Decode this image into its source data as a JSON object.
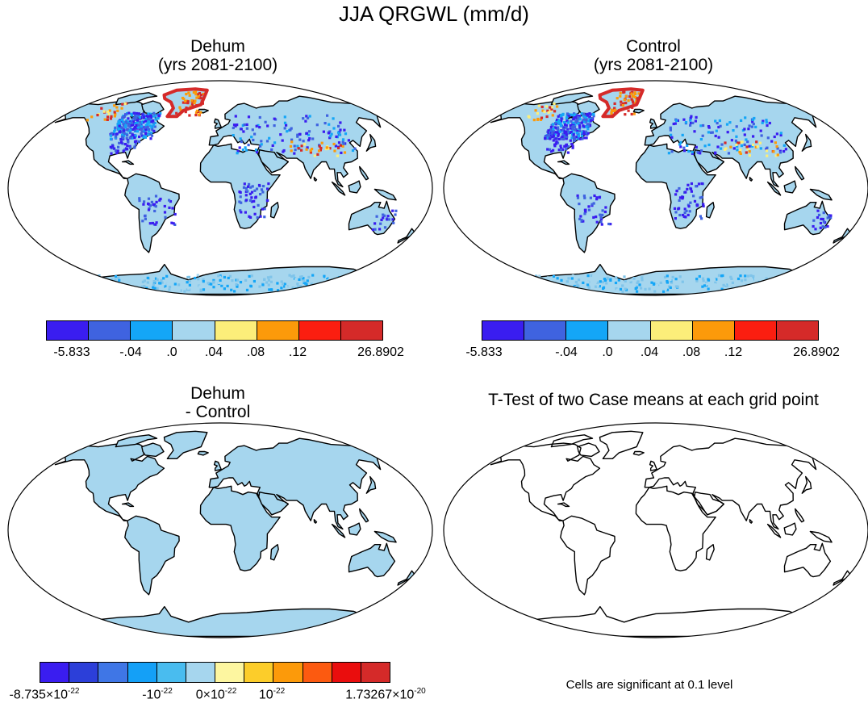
{
  "figure": {
    "title": "JJA QRGWL (mm/d)"
  },
  "panels": [
    {
      "id": "dehum",
      "title_line1": "Dehum",
      "title_line2": "(yrs 2081-2100)"
    },
    {
      "id": "control",
      "title_line1": "Control",
      "title_line2": "(yrs 2081-2100)"
    },
    {
      "id": "diff",
      "title_line1": "Dehum",
      "title_line2": "- Control"
    },
    {
      "id": "ttest",
      "title_line1": "T-Test of two Case means at each grid point",
      "title_line2": ""
    }
  ],
  "colorbar_top": {
    "colors": [
      "#3a1df0",
      "#3f63e0",
      "#14a6f7",
      "#a6d6ee",
      "#fcee7a",
      "#fc9a0a",
      "#fb1e10",
      "#d52a29"
    ],
    "labels": [
      "-5.833",
      "-.04",
      ".0",
      ".04",
      ".08",
      ".12",
      "26.8902"
    ]
  },
  "colorbar_bottom": {
    "colors": [
      "#3a1df0",
      "#2c3fd9",
      "#3f76e6",
      "#14a0f7",
      "#49bcef",
      "#a6d6ee",
      "#fdf6a0",
      "#fccd2a",
      "#fc9a0a",
      "#fc5a10",
      "#ea0d0d",
      "#d52a29"
    ],
    "labels": {
      "min": "-8.735×10",
      "min_exp": "-22",
      "neg": "-10",
      "neg_exp": "-22",
      "zero": "0×10",
      "zero_exp": "-22",
      "pos": "10",
      "pos_exp": "-22",
      "max": "1.73267×10",
      "max_exp": "-20"
    }
  },
  "ttest_note": "Cells are significant at 0.1 level",
  "map_colors": {
    "land_fill": "#a6d6ee",
    "coast": "#000000",
    "ocean": "#ffffff",
    "dense_blue": "#3a1df0",
    "warm": "#d52a29",
    "orange": "#fc9a0a",
    "yellow": "#fcee7a"
  }
}
